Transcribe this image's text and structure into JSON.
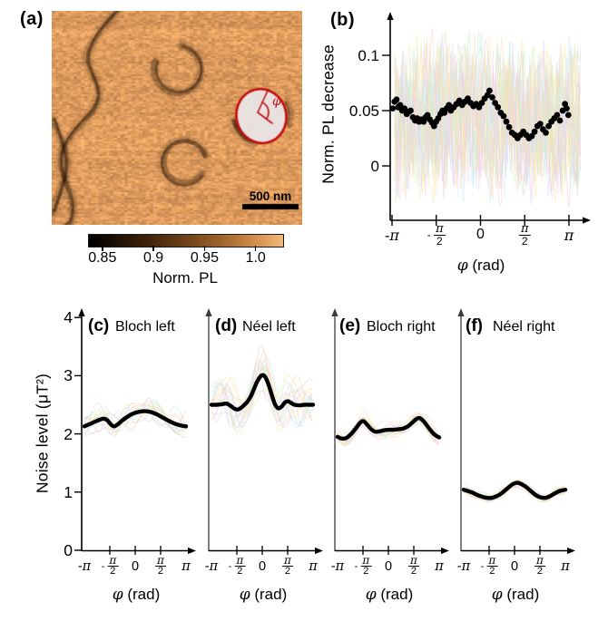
{
  "panels": {
    "a": {
      "label": "(a)",
      "scale_bar": "500 nm",
      "angle_label": "φ",
      "image": {
        "base_color": "#e0a064",
        "dark_color": "#23100 2",
        "domain_wall_color": "#2a1504",
        "skyrmion_fill": "#e9e5e6",
        "circle_color": "#c41212"
      },
      "colorbar": {
        "label": "Norm. PL",
        "tick_labels": [
          "0.85",
          "0.9",
          "0.95",
          "1.0"
        ],
        "tick_values": [
          0.85,
          0.9,
          0.95,
          1.0
        ],
        "range": [
          0.836,
          1.026
        ],
        "gradient": [
          "#000000 0%",
          "#140a03 10%",
          "#3f2209 30%",
          "#6f4218 50%",
          "#965d28 65%",
          "#c3803f 80%",
          "#e2a160 92%",
          "#f2b97e 100%"
        ]
      }
    }
  },
  "noise_trace_colors": [
    "#f7bfe3",
    "#c3ecf4",
    "#f6eda1",
    "#cdefc5",
    "#e2d6f5",
    "#fcdcba",
    "#f9cfcf",
    "#c9ece4",
    "#f3d9f7",
    "#fce9a8"
  ],
  "chart_data": [
    {
      "id": "b",
      "type": "scatter",
      "panel_label": "(b)",
      "xlabel": "φ (rad)",
      "ylabel": "Norm. PL decrease",
      "x_tick_labels": [
        "-π",
        "-π/2",
        "0",
        "π/2",
        "π"
      ],
      "x_tick_values": [
        -3.1416,
        -1.5708,
        0,
        1.5708,
        3.1416
      ],
      "y_tick_labels": [
        "0",
        "0.05",
        "0.1"
      ],
      "y_tick_values": [
        0,
        0.05,
        0.1
      ],
      "xlim": [
        -3.1416,
        3.1416
      ],
      "ylim": [
        -0.05,
        0.138
      ],
      "grid": false,
      "marker_color": "#000000",
      "background_traces": {
        "count": 16,
        "amplitude": 0.175,
        "alpha": 0.5
      },
      "points": [
        [
          -3.12,
          0.052
        ],
        [
          -3.05,
          0.058
        ],
        [
          -2.98,
          0.06
        ],
        [
          -2.92,
          0.053
        ],
        [
          -2.85,
          0.055
        ],
        [
          -2.78,
          0.05
        ],
        [
          -2.7,
          0.052
        ],
        [
          -2.62,
          0.047
        ],
        [
          -2.55,
          0.049
        ],
        [
          -2.48,
          0.05
        ],
        [
          -2.4,
          0.044
        ],
        [
          -2.32,
          0.041
        ],
        [
          -2.25,
          0.043
        ],
        [
          -2.18,
          0.04
        ],
        [
          -2.1,
          0.042
        ],
        [
          -2.02,
          0.04
        ],
        [
          -1.95,
          0.044
        ],
        [
          -1.88,
          0.046
        ],
        [
          -1.8,
          0.042
        ],
        [
          -1.72,
          0.039
        ],
        [
          -1.65,
          0.036
        ],
        [
          -1.58,
          0.04
        ],
        [
          -1.5,
          0.043
        ],
        [
          -1.42,
          0.047
        ],
        [
          -1.35,
          0.05
        ],
        [
          -1.28,
          0.048
        ],
        [
          -1.2,
          0.052
        ],
        [
          -1.12,
          0.055
        ],
        [
          -1.05,
          0.05
        ],
        [
          -0.95,
          0.053
        ],
        [
          -0.85,
          0.056
        ],
        [
          -0.75,
          0.059
        ],
        [
          -0.65,
          0.055
        ],
        [
          -0.55,
          0.058
        ],
        [
          -0.45,
          0.061
        ],
        [
          -0.35,
          0.057
        ],
        [
          -0.25,
          0.054
        ],
        [
          -0.15,
          0.056
        ],
        [
          -0.05,
          0.053
        ],
        [
          0.05,
          0.057
        ],
        [
          0.15,
          0.061
        ],
        [
          0.25,
          0.064
        ],
        [
          0.32,
          0.068
        ],
        [
          0.42,
          0.062
        ],
        [
          0.52,
          0.057
        ],
        [
          0.62,
          0.053
        ],
        [
          0.72,
          0.048
        ],
        [
          0.82,
          0.045
        ],
        [
          0.92,
          0.04
        ],
        [
          1.02,
          0.035
        ],
        [
          1.12,
          0.03
        ],
        [
          1.22,
          0.028
        ],
        [
          1.32,
          0.025
        ],
        [
          1.42,
          0.028
        ],
        [
          1.52,
          0.031
        ],
        [
          1.62,
          0.028
        ],
        [
          1.72,
          0.025
        ],
        [
          1.82,
          0.027
        ],
        [
          1.92,
          0.031
        ],
        [
          2.02,
          0.036
        ],
        [
          2.12,
          0.038
        ],
        [
          2.22,
          0.033
        ],
        [
          2.32,
          0.03
        ],
        [
          2.42,
          0.036
        ],
        [
          2.52,
          0.04
        ],
        [
          2.62,
          0.043
        ],
        [
          2.72,
          0.046
        ],
        [
          2.82,
          0.041
        ],
        [
          2.92,
          0.05
        ],
        [
          3.0,
          0.056
        ],
        [
          3.06,
          0.052
        ],
        [
          3.12,
          0.046
        ]
      ]
    },
    {
      "id": "c",
      "type": "line",
      "panel_label": "(c)",
      "series_label": "Bloch left",
      "xlabel": "φ (rad)",
      "ylabel": "Noise level (μT²)",
      "x_tick_labels": [
        "-π",
        "-π/2",
        "0",
        "π/2",
        "π"
      ],
      "x_tick_values": [
        -3.1416,
        -1.5708,
        0,
        1.5708,
        3.1416
      ],
      "y_tick_labels": [
        "0",
        "1",
        "2",
        "3",
        "4"
      ],
      "y_tick_values": [
        0,
        1,
        2,
        3,
        4
      ],
      "xlim": [
        -3.1416,
        3.1416
      ],
      "ylim": [
        0,
        4.2
      ],
      "grid": false,
      "line_color": "#000000",
      "background_traces": {
        "count": 14,
        "amplitude": 0.14,
        "alpha": 0.55
      },
      "points": [
        [
          -3.14,
          2.13
        ],
        [
          -2.8,
          2.17
        ],
        [
          -2.4,
          2.22
        ],
        [
          -2.0,
          2.26
        ],
        [
          -1.75,
          2.24
        ],
        [
          -1.5,
          2.16
        ],
        [
          -1.3,
          2.13
        ],
        [
          -1.1,
          2.16
        ],
        [
          -0.8,
          2.23
        ],
        [
          -0.5,
          2.29
        ],
        [
          -0.2,
          2.34
        ],
        [
          0.1,
          2.37
        ],
        [
          0.5,
          2.39
        ],
        [
          0.9,
          2.38
        ],
        [
          1.3,
          2.34
        ],
        [
          1.7,
          2.28
        ],
        [
          2.1,
          2.22
        ],
        [
          2.5,
          2.17
        ],
        [
          2.9,
          2.14
        ],
        [
          3.14,
          2.13
        ]
      ]
    },
    {
      "id": "d",
      "type": "line",
      "panel_label": "(d)",
      "series_label": "Néel left",
      "xlabel": "φ (rad)",
      "x_tick_labels": [
        "-π",
        "-π/2",
        "0",
        "π/2",
        "π"
      ],
      "x_tick_values": [
        -3.1416,
        -1.5708,
        0,
        1.5708,
        3.1416
      ],
      "xlim": [
        -3.1416,
        3.1416
      ],
      "ylim": [
        0,
        4.2
      ],
      "grid": false,
      "line_color": "#000000",
      "background_traces": {
        "count": 16,
        "amplitude": 0.3,
        "alpha": 0.55
      },
      "points": [
        [
          -3.14,
          2.5
        ],
        [
          -2.8,
          2.5
        ],
        [
          -2.5,
          2.51
        ],
        [
          -2.2,
          2.52
        ],
        [
          -1.95,
          2.48
        ],
        [
          -1.7,
          2.43
        ],
        [
          -1.5,
          2.42
        ],
        [
          -1.3,
          2.45
        ],
        [
          -1.1,
          2.5
        ],
        [
          -0.9,
          2.56
        ],
        [
          -0.7,
          2.65
        ],
        [
          -0.5,
          2.78
        ],
        [
          -0.3,
          2.91
        ],
        [
          -0.1,
          2.99
        ],
        [
          0.05,
          3.01
        ],
        [
          0.2,
          2.97
        ],
        [
          0.4,
          2.84
        ],
        [
          0.6,
          2.66
        ],
        [
          0.8,
          2.5
        ],
        [
          1.0,
          2.44
        ],
        [
          1.2,
          2.47
        ],
        [
          1.4,
          2.54
        ],
        [
          1.6,
          2.56
        ],
        [
          1.8,
          2.53
        ],
        [
          2.0,
          2.5
        ],
        [
          2.3,
          2.49
        ],
        [
          2.6,
          2.5
        ],
        [
          2.9,
          2.5
        ],
        [
          3.14,
          2.5
        ]
      ]
    },
    {
      "id": "e",
      "type": "line",
      "panel_label": "(e)",
      "series_label": "Bloch right",
      "xlabel": "φ (rad)",
      "x_tick_labels": [
        "-π",
        "-π/2",
        "0",
        "π/2",
        "π"
      ],
      "x_tick_values": [
        -3.1416,
        -1.5708,
        0,
        1.5708,
        3.1416
      ],
      "xlim": [
        -3.1416,
        3.1416
      ],
      "ylim": [
        0,
        4.2
      ],
      "grid": false,
      "line_color": "#000000",
      "background_traces": {
        "count": 14,
        "amplitude": 0.1,
        "alpha": 0.55
      },
      "points": [
        [
          -3.14,
          1.95
        ],
        [
          -2.9,
          1.92
        ],
        [
          -2.6,
          1.93
        ],
        [
          -2.3,
          2.0
        ],
        [
          -2.0,
          2.1
        ],
        [
          -1.75,
          2.19
        ],
        [
          -1.55,
          2.22
        ],
        [
          -1.35,
          2.17
        ],
        [
          -1.1,
          2.09
        ],
        [
          -0.85,
          2.04
        ],
        [
          -0.6,
          2.04
        ],
        [
          -0.3,
          2.06
        ],
        [
          0,
          2.07
        ],
        [
          0.3,
          2.07
        ],
        [
          0.6,
          2.08
        ],
        [
          0.9,
          2.09
        ],
        [
          1.2,
          2.13
        ],
        [
          1.5,
          2.2
        ],
        [
          1.75,
          2.26
        ],
        [
          1.95,
          2.27
        ],
        [
          2.2,
          2.21
        ],
        [
          2.5,
          2.1
        ],
        [
          2.8,
          2.0
        ],
        [
          3.0,
          1.96
        ],
        [
          3.14,
          1.94
        ]
      ]
    },
    {
      "id": "f",
      "type": "line",
      "panel_label": "(f)",
      "series_label": "Néel right",
      "xlabel": "φ (rad)",
      "x_tick_labels": [
        "-π",
        "-π/2",
        "0",
        "π/2",
        "π"
      ],
      "x_tick_values": [
        -3.1416,
        -1.5708,
        0,
        1.5708,
        3.1416
      ],
      "xlim": [
        -3.1416,
        3.1416
      ],
      "ylim": [
        0,
        4.2
      ],
      "grid": false,
      "line_color": "#000000",
      "background_traces": {
        "count": 14,
        "amplitude": 0.055,
        "alpha": 0.55
      },
      "points": [
        [
          -3.14,
          1.04
        ],
        [
          -2.9,
          1.02
        ],
        [
          -2.6,
          0.99
        ],
        [
          -2.3,
          0.95
        ],
        [
          -2.0,
          0.92
        ],
        [
          -1.7,
          0.9
        ],
        [
          -1.4,
          0.9
        ],
        [
          -1.1,
          0.93
        ],
        [
          -0.8,
          0.98
        ],
        [
          -0.5,
          1.05
        ],
        [
          -0.2,
          1.12
        ],
        [
          0.0,
          1.15
        ],
        [
          0.2,
          1.16
        ],
        [
          0.4,
          1.14
        ],
        [
          0.7,
          1.09
        ],
        [
          1.0,
          1.02
        ],
        [
          1.3,
          0.95
        ],
        [
          1.6,
          0.91
        ],
        [
          1.9,
          0.9
        ],
        [
          2.2,
          0.93
        ],
        [
          2.5,
          0.98
        ],
        [
          2.8,
          1.02
        ],
        [
          3.14,
          1.04
        ]
      ]
    }
  ]
}
